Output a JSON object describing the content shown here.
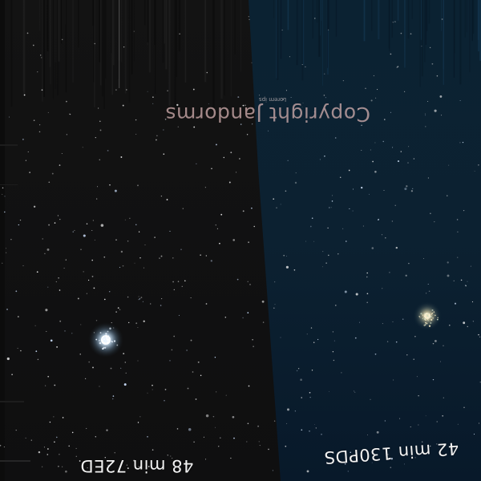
{
  "panels": {
    "left": {
      "caption": "48 min 72ED",
      "background": "#151414"
    },
    "right": {
      "caption": "42 min 130PDS",
      "background": "#0c2233"
    }
  },
  "watermark": {
    "text": "Copyright Jandorms",
    "subtext": "Lorem ips"
  },
  "objects": {
    "left_cluster_color": "#d6ecff",
    "right_cluster_color": "#e8dcb8"
  }
}
